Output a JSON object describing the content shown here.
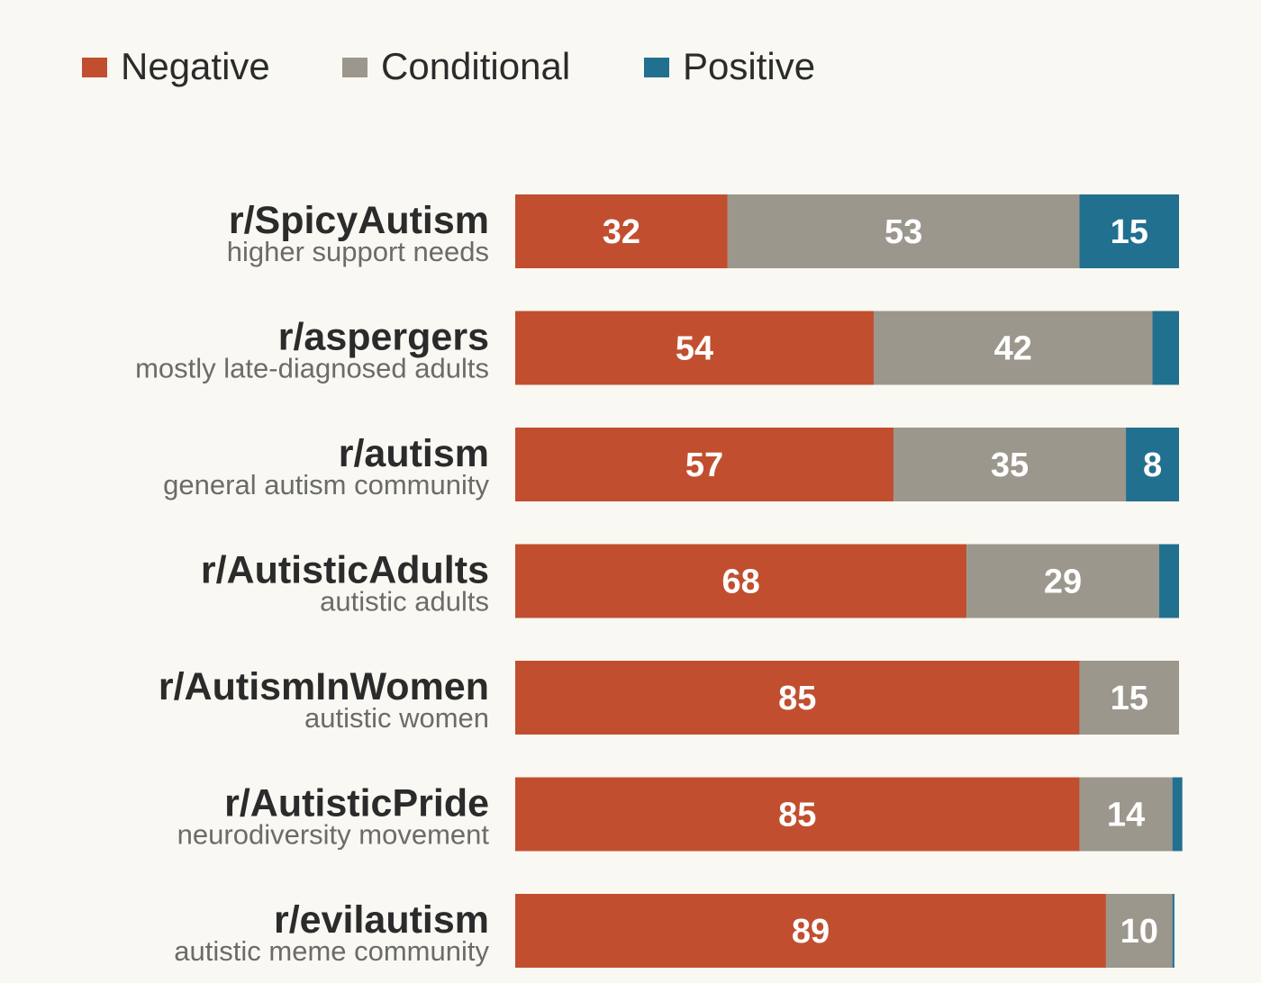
{
  "chart_data": {
    "type": "bar",
    "orientation": "horizontal",
    "stacked": true,
    "normalized": true,
    "legend_position": "top-left",
    "grid": false,
    "xlim": [
      0,
      100
    ],
    "categories": [
      "r/SpicyAutism",
      "r/aspergers",
      "r/autism",
      "r/AutisticAdults",
      "r/AutismInWomen",
      "r/AutisticPride",
      "r/evilautism"
    ],
    "category_descriptions": [
      "higher support needs",
      "mostly late-diagnosed adults",
      "general autism community",
      "autistic adults",
      "autistic women",
      "neurodiversity movement",
      "autistic meme community"
    ],
    "series": [
      {
        "name": "Negative",
        "color": "#c14f2f",
        "values": [
          32,
          54,
          57,
          68,
          85,
          85,
          89
        ]
      },
      {
        "name": "Conditional",
        "color": "#9b978c",
        "values": [
          53,
          42,
          35,
          29,
          15,
          14,
          10
        ]
      },
      {
        "name": "Positive",
        "color": "#22708f",
        "values": [
          15,
          4,
          8,
          3,
          0,
          1.5,
          0.3
        ]
      }
    ],
    "data_labels": [
      [
        "32",
        "53",
        "15"
      ],
      [
        "54",
        "42",
        ""
      ],
      [
        "57",
        "35",
        "8"
      ],
      [
        "68",
        "29",
        ""
      ],
      [
        "85",
        "15",
        ""
      ],
      [
        "85",
        "14",
        ""
      ],
      [
        "89",
        "10",
        ""
      ]
    ]
  }
}
